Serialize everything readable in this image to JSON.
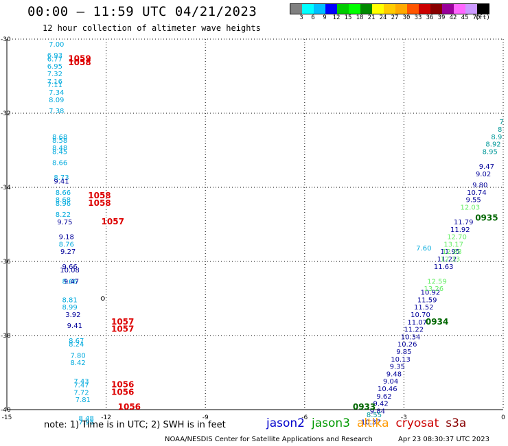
{
  "header": {
    "title": "00:00 – 11:59 UTC 04/21/2023",
    "subtitle": "12 hour collection of altimeter wave heights"
  },
  "colorbar": {
    "colors": [
      "#808080",
      "#00ffff",
      "#00bfff",
      "#0000ff",
      "#00cc00",
      "#00ff00",
      "#008800",
      "#ffff00",
      "#ffcc00",
      "#ffaa00",
      "#ff5500",
      "#cc0000",
      "#880000",
      "#990099",
      "#ff66ff",
      "#cc99ff",
      "#000000"
    ],
    "labels": [
      "3",
      "6",
      "9",
      "12",
      "15",
      "18",
      "21",
      "24",
      "27",
      "30",
      "33",
      "36",
      "39",
      "42",
      "45",
      "70",
      "(ft)"
    ]
  },
  "chart_data": {
    "type": "scatter",
    "title": "00:00 – 11:59 UTC 04/21/2023",
    "xlim": [
      -15,
      0
    ],
    "ylim": [
      -40,
      -30
    ],
    "xticks": [
      "-15",
      "-12",
      "-9",
      "-6",
      "-3",
      "0"
    ],
    "yticks": [
      "-30",
      "-32",
      "-34",
      "-36",
      "-38",
      "-40"
    ],
    "grid": true,
    "legend": "bottom",
    "series": [
      {
        "color": "#00aadd",
        "points": [
          [
            -13.5,
            -30.2,
            "7.00"
          ],
          [
            -13.55,
            -30.5,
            "6.93"
          ],
          [
            -13.55,
            -30.6,
            "6.77"
          ],
          [
            -13.55,
            -30.8,
            "6.95"
          ],
          [
            -13.55,
            -31.0,
            "7.32"
          ],
          [
            -13.55,
            -31.2,
            "7.16"
          ],
          [
            -13.55,
            -31.3,
            "7.11"
          ],
          [
            -13.5,
            -31.5,
            "7.34"
          ],
          [
            -13.5,
            -31.7,
            "8.09"
          ],
          [
            -13.5,
            -32.0,
            "7.38"
          ],
          [
            -13.4,
            -32.7,
            "8.68"
          ],
          [
            -13.4,
            -32.8,
            "8.58"
          ],
          [
            -13.4,
            -33.0,
            "8.48"
          ],
          [
            -13.4,
            -33.1,
            "8.45"
          ],
          [
            -13.4,
            -33.4,
            "8.66"
          ],
          [
            -13.35,
            -33.8,
            "8.73"
          ],
          [
            -13.3,
            -34.2,
            "8.66"
          ],
          [
            -13.3,
            -34.4,
            "8.68"
          ],
          [
            -13.3,
            -34.5,
            "8.96"
          ],
          [
            -13.3,
            -34.8,
            "8.22"
          ],
          [
            -13.2,
            -35.6,
            "8.76"
          ],
          [
            -13.1,
            -36.6,
            "8.66"
          ],
          [
            -13.1,
            -37.1,
            "8.81"
          ],
          [
            -13.1,
            -37.3,
            "8.99"
          ],
          [
            -12.9,
            -38.2,
            "8.67"
          ],
          [
            -12.9,
            -38.3,
            "8.24"
          ],
          [
            -12.85,
            -38.6,
            "7.80"
          ],
          [
            -12.85,
            -38.8,
            "8.42"
          ],
          [
            -12.75,
            -39.3,
            "7.43"
          ],
          [
            -12.75,
            -39.4,
            "7.47"
          ],
          [
            -12.75,
            -39.6,
            "7.72"
          ],
          [
            -12.7,
            -39.8,
            "7.81"
          ],
          [
            -12.6,
            -40.3,
            "8.48"
          ],
          [
            -12.6,
            -40.4,
            "7.98"
          ],
          [
            -2.4,
            -35.7,
            "7.60"
          ]
        ]
      },
      {
        "color": "#000099",
        "points": [
          [
            -13.35,
            -33.9,
            "9.41"
          ],
          [
            -13.25,
            -35.0,
            "9.75"
          ],
          [
            -13.2,
            -35.4,
            "9.18"
          ],
          [
            -13.15,
            -35.8,
            "9.27"
          ],
          [
            -13.1,
            -36.2,
            "9.66"
          ],
          [
            -13.1,
            -36.3,
            "10.08"
          ],
          [
            -13.05,
            -36.6,
            "9.47"
          ],
          [
            -13.0,
            -37.5,
            "3.92"
          ],
          [
            -12.95,
            -37.8,
            "9.41"
          ],
          [
            -0.5,
            -33.5,
            "9.47"
          ],
          [
            -0.6,
            -33.7,
            "9.02"
          ],
          [
            -0.7,
            -34.0,
            "9.80"
          ],
          [
            -0.8,
            -34.2,
            "10.74"
          ],
          [
            -0.9,
            -34.4,
            "9.55"
          ],
          [
            -1.2,
            -35.0,
            "11.79"
          ],
          [
            -1.3,
            -35.2,
            "11.92"
          ],
          [
            -1.6,
            -35.8,
            "11.95"
          ],
          [
            -1.7,
            -36.0,
            "11.22"
          ],
          [
            -1.8,
            -36.2,
            "11.63"
          ],
          [
            -2.2,
            -36.9,
            "10.92"
          ],
          [
            -2.3,
            -37.1,
            "11.59"
          ],
          [
            -2.4,
            -37.3,
            "11.52"
          ],
          [
            -2.5,
            -37.5,
            "10.70"
          ],
          [
            -2.6,
            -37.7,
            "11.07"
          ],
          [
            -2.7,
            -37.9,
            "11.22"
          ],
          [
            -2.8,
            -38.1,
            "10.34"
          ],
          [
            -2.9,
            -38.3,
            "10.26"
          ],
          [
            -3.0,
            -38.5,
            "9.85"
          ],
          [
            -3.1,
            -38.7,
            "10.13"
          ],
          [
            -3.2,
            -38.9,
            "9.35"
          ],
          [
            -3.3,
            -39.1,
            "9.48"
          ],
          [
            -3.4,
            -39.3,
            "9.04"
          ],
          [
            -3.5,
            -39.5,
            "10.46"
          ],
          [
            -3.6,
            -39.7,
            "9.62"
          ],
          [
            -3.7,
            -39.9,
            "9.42"
          ],
          [
            -3.8,
            -40.1,
            "9.84"
          ],
          [
            -4.0,
            -40.4,
            "10.37"
          ]
        ]
      },
      {
        "color": "#009999",
        "points": [
          [
            -0.05,
            -32.3,
            "7"
          ],
          [
            -0.1,
            -32.5,
            "8"
          ],
          [
            -0.2,
            -32.7,
            "8.9"
          ],
          [
            -0.3,
            -32.9,
            "8.92"
          ],
          [
            -0.4,
            -33.1,
            "8.95"
          ],
          [
            -3.9,
            -40.2,
            "8.55"
          ]
        ]
      },
      {
        "color": "#66ee66",
        "points": [
          [
            -1.0,
            -34.6,
            "12.03"
          ],
          [
            -1.4,
            -35.4,
            "12.70"
          ],
          [
            -1.5,
            -35.6,
            "13.17"
          ],
          [
            -1.55,
            -35.8,
            "12.88"
          ],
          [
            -1.6,
            -36.0,
            "12.33"
          ],
          [
            -2.0,
            -36.6,
            "12.59"
          ],
          [
            -2.1,
            -36.8,
            "13.26"
          ]
        ]
      }
    ],
    "track_times": [
      {
        "color": "#dd0000",
        "points": [
          [
            -12.8,
            -30.6,
            "1059"
          ],
          [
            -12.8,
            -30.7,
            "1058"
          ],
          [
            -12.2,
            -34.3,
            "1058"
          ],
          [
            -12.2,
            -34.5,
            "1058"
          ],
          [
            -11.8,
            -35.0,
            "1057"
          ],
          [
            -11.5,
            -37.7,
            "1057"
          ],
          [
            -11.5,
            -37.9,
            "1057"
          ],
          [
            -11.5,
            -39.4,
            "1056"
          ],
          [
            -11.5,
            -39.6,
            "1056"
          ],
          [
            -11.3,
            -40.0,
            "1056"
          ]
        ]
      },
      {
        "color": "#006600",
        "points": [
          [
            -0.5,
            -34.9,
            "0935"
          ],
          [
            -2.0,
            -37.7,
            "0934"
          ],
          [
            -4.2,
            -40.0,
            "0933"
          ]
        ]
      }
    ]
  },
  "note": "note:  1) Time is in UTC;  2) SWH is in feet",
  "satellites": [
    {
      "name": "jason2",
      "color": "#0000cc"
    },
    {
      "name": "jason3",
      "color": "#009900"
    },
    {
      "name": "altika",
      "color": "#ff9900"
    },
    {
      "name": "cryosat",
      "color": "#cc0000"
    },
    {
      "name": "s3a",
      "color": "#880000"
    }
  ],
  "footer": {
    "left": "NOAA/NESDIS Center for Satellite Applications and Research",
    "right": "Apr 23 08:30:37 UTC 2023"
  }
}
